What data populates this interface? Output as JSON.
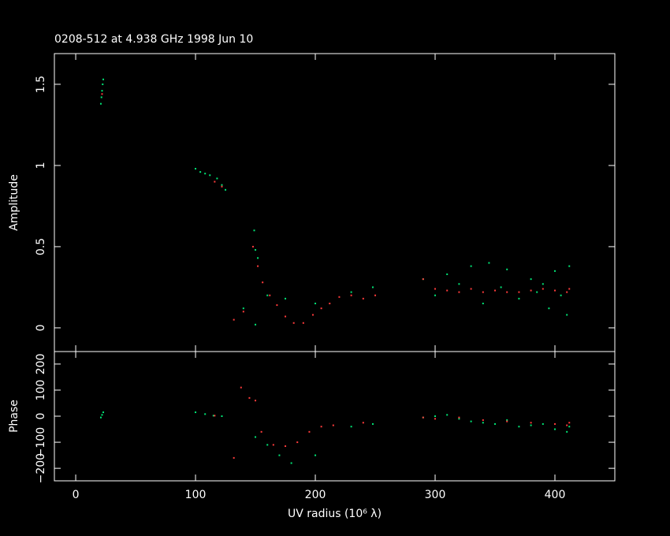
{
  "chart_data": [
    {
      "type": "scatter",
      "title": "0208-512 at 4.938 GHz 1998 Jun 10",
      "ylabel": "Amplitude",
      "xlim": [
        -17.8,
        450
      ],
      "ylim": [
        -0.146,
        1.689
      ],
      "yticks": [
        0,
        0.5,
        1,
        1.5
      ],
      "series": [
        {
          "name": "green",
          "color": "#00e676",
          "x": [
            21,
            21.5,
            22,
            22.5,
            23,
            100,
            104,
            108,
            112,
            118,
            122,
            125,
            149,
            150,
            152,
            140,
            150,
            160,
            175,
            200,
            230,
            248,
            290,
            300,
            310,
            320,
            330,
            340,
            345,
            355,
            360,
            370,
            380,
            385,
            390,
            395,
            400,
            405,
            410,
            412
          ],
          "values": [
            1.38,
            1.42,
            1.46,
            1.5,
            1.53,
            0.98,
            0.96,
            0.95,
            0.94,
            0.92,
            0.88,
            0.85,
            0.6,
            0.48,
            0.43,
            0.12,
            0.02,
            0.2,
            0.18,
            0.15,
            0.22,
            0.25,
            0.3,
            0.2,
            0.33,
            0.27,
            0.38,
            0.15,
            0.4,
            0.25,
            0.36,
            0.18,
            0.3,
            0.22,
            0.27,
            0.12,
            0.35,
            0.2,
            0.08,
            0.38
          ]
        },
        {
          "name": "red",
          "color": "#ff3b3b",
          "x": [
            22,
            116,
            122,
            132,
            140,
            148,
            152,
            156,
            162,
            168,
            175,
            182,
            190,
            198,
            205,
            212,
            220,
            230,
            240,
            250,
            290,
            300,
            310,
            320,
            330,
            340,
            350,
            360,
            370,
            380,
            390,
            400,
            410,
            412
          ],
          "values": [
            1.44,
            0.9,
            0.87,
            0.05,
            0.1,
            0.5,
            0.38,
            0.28,
            0.2,
            0.14,
            0.07,
            0.03,
            0.03,
            0.08,
            0.12,
            0.15,
            0.19,
            0.2,
            0.18,
            0.2,
            0.3,
            0.24,
            0.23,
            0.22,
            0.24,
            0.22,
            0.23,
            0.22,
            0.22,
            0.23,
            0.24,
            0.23,
            0.22,
            0.24
          ]
        }
      ]
    },
    {
      "type": "scatter",
      "ylabel": "Phase",
      "xlabel": "UV radius  (10⁶ λ)",
      "xlim": [
        -17.8,
        450
      ],
      "ylim": [
        -248,
        248
      ],
      "xticks": [
        0,
        100,
        200,
        300,
        400
      ],
      "yticks": [
        {
          "value": -200,
          "label": "−200"
        },
        {
          "value": -100,
          "label": "−100"
        },
        0,
        100,
        200
      ],
      "series": [
        {
          "name": "green",
          "color": "#00e676",
          "x": [
            21,
            22,
            23,
            100,
            108,
            115,
            122,
            150,
            160,
            170,
            180,
            200,
            230,
            248,
            290,
            300,
            310,
            320,
            330,
            340,
            350,
            360,
            370,
            380,
            390,
            400,
            410,
            412
          ],
          "values": [
            -5,
            5,
            15,
            15,
            8,
            2,
            0,
            -80,
            -110,
            -150,
            -180,
            -150,
            -40,
            -30,
            -5,
            0,
            5,
            -10,
            -20,
            -25,
            -30,
            -15,
            -40,
            -35,
            -30,
            -50,
            -60,
            -40
          ]
        },
        {
          "name": "red",
          "color": "#ff3b3b",
          "x": [
            116,
            132,
            138,
            145,
            150,
            155,
            165,
            175,
            185,
            195,
            205,
            215,
            240,
            290,
            300,
            320,
            340,
            360,
            380,
            400,
            410,
            412
          ],
          "values": [
            2,
            -160,
            110,
            70,
            60,
            -60,
            -110,
            -115,
            -100,
            -60,
            -40,
            -35,
            -25,
            -5,
            -10,
            -5,
            -15,
            -20,
            -25,
            -30,
            -35,
            -25
          ]
        }
      ]
    }
  ]
}
